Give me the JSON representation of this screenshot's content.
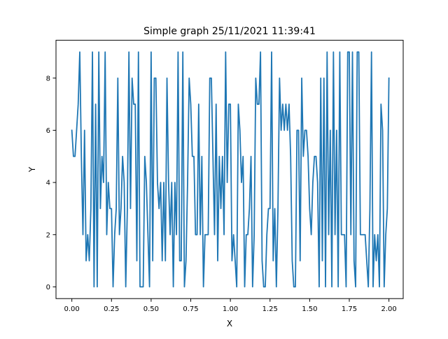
{
  "chart_data": {
    "type": "line",
    "title": "Simple graph 25/11/2021 11:39:41",
    "xlabel": "X",
    "ylabel": "Y",
    "xlim": [
      -0.1,
      2.09
    ],
    "ylim": [
      -0.45,
      9.45
    ],
    "xticks": [
      0.0,
      0.25,
      0.5,
      0.75,
      1.0,
      1.25,
      1.5,
      1.75,
      2.0
    ],
    "xtick_labels": [
      "0.00",
      "0.25",
      "0.50",
      "0.75",
      "1.00",
      "1.25",
      "1.50",
      "1.75",
      "2.00"
    ],
    "yticks": [
      0,
      2,
      4,
      6,
      8
    ],
    "ytick_labels": [
      "0",
      "2",
      "4",
      "6",
      "8"
    ],
    "grid": false,
    "line_color": "#1f77b4",
    "series": [
      {
        "x_start": 0.0,
        "x_step": 0.01,
        "values": [
          6,
          5,
          5,
          6,
          7,
          9,
          5,
          2,
          6,
          1,
          2,
          1,
          3,
          9,
          0,
          7,
          0,
          9,
          3,
          5,
          4,
          9,
          2,
          4,
          3,
          3,
          0,
          2,
          3,
          8,
          2,
          3,
          5,
          4,
          0,
          3,
          9,
          3,
          8,
          7,
          7,
          1,
          9,
          0,
          0,
          0,
          5,
          4,
          2,
          0,
          9,
          1,
          8,
          8,
          4,
          3,
          4,
          1,
          4,
          1,
          8,
          4,
          2,
          4,
          0,
          4,
          2,
          9,
          1,
          1,
          9,
          0,
          1,
          4,
          8,
          7,
          5,
          5,
          2,
          2,
          7,
          2,
          5,
          0,
          2,
          2,
          2,
          8,
          8,
          5,
          2,
          7,
          1,
          5,
          3,
          5,
          2,
          9,
          4,
          7,
          7,
          1,
          2,
          1,
          0,
          7,
          6,
          4,
          5,
          0,
          2,
          2,
          3,
          5,
          0,
          2,
          8,
          7,
          7,
          9,
          1,
          0,
          0,
          2,
          3,
          3,
          9,
          1,
          3,
          0,
          3,
          8,
          6,
          7,
          6,
          7,
          6,
          7,
          5,
          1,
          0,
          0,
          6,
          6,
          1,
          8,
          5,
          6,
          6,
          5,
          3,
          2,
          4,
          5,
          5,
          4,
          0,
          8,
          1,
          8,
          0,
          9,
          2,
          6,
          0,
          9,
          2,
          6,
          0,
          9,
          2,
          2,
          2,
          0,
          9,
          9,
          2,
          9,
          1,
          0,
          9,
          9,
          2,
          2,
          2,
          2,
          1,
          0,
          3,
          9,
          0,
          2,
          1,
          2,
          0,
          7,
          6,
          0,
          2,
          3,
          8
        ]
      }
    ]
  }
}
